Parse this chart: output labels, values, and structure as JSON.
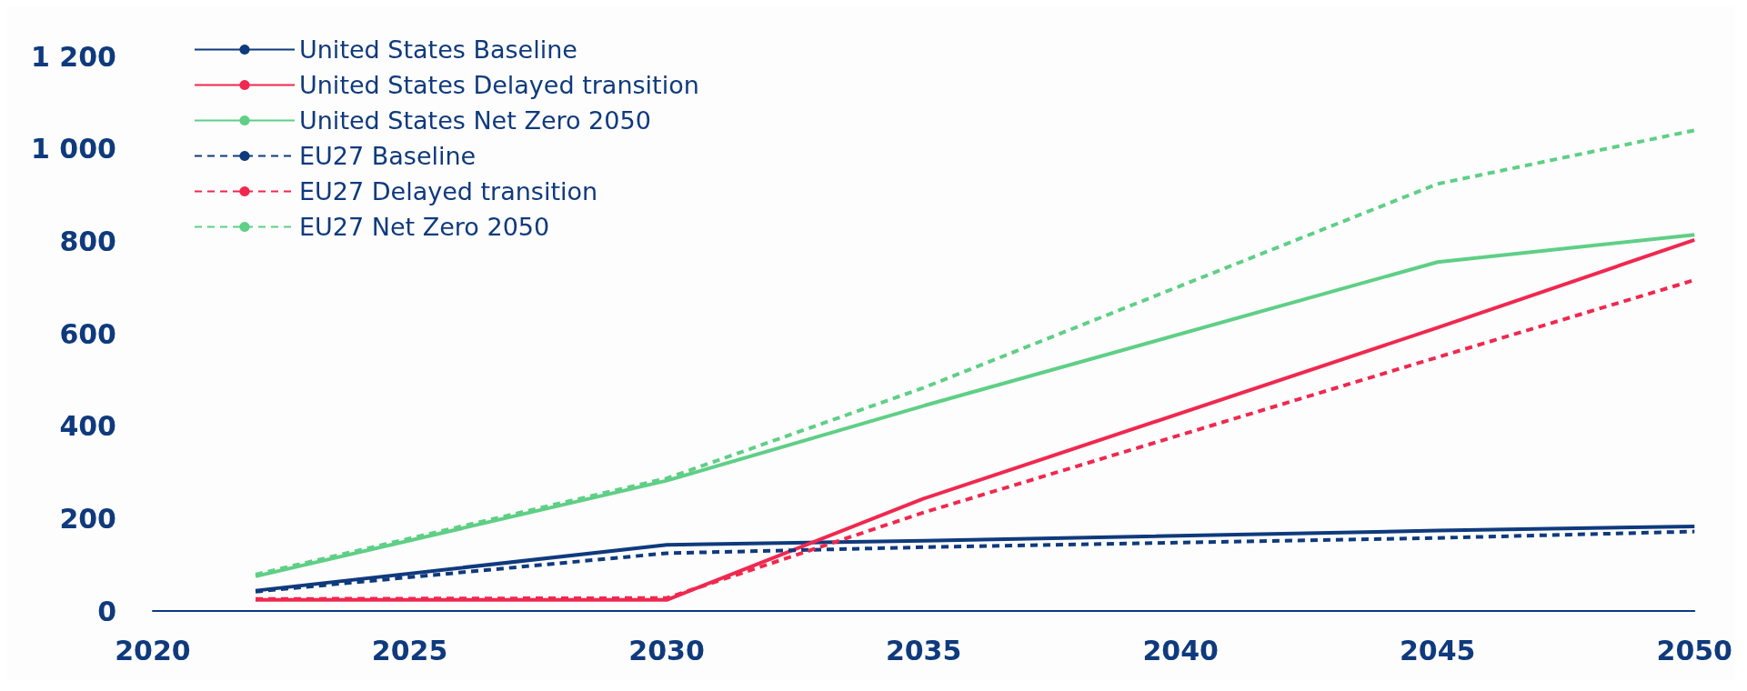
{
  "chart_data": {
    "type": "line",
    "x": [
      2022,
      2030,
      2035,
      2045,
      2050
    ],
    "series": [
      {
        "name": "United States Baseline",
        "color": "#0f3a7d",
        "line_style": "solid",
        "values": [
          44,
          143,
          152,
          174,
          183
        ]
      },
      {
        "name": "United States Delayed transition",
        "color": "#f0284f",
        "line_style": "solid",
        "values": [
          24,
          24,
          243,
          613,
          803
        ]
      },
      {
        "name": "United States Net Zero 2050",
        "color": "#5fcf86",
        "line_style": "solid",
        "values": [
          75,
          282,
          444,
          755,
          814
        ]
      },
      {
        "name": "EU27 Baseline",
        "color": "#0f3a7d",
        "line_style": "dashed",
        "values": [
          42,
          125,
          138,
          158,
          172
        ]
      },
      {
        "name": "EU27 Delayed transition",
        "color": "#f0284f",
        "line_style": "dashed",
        "values": [
          26,
          28,
          213,
          549,
          716
        ]
      },
      {
        "name": "EU27 Net Zero 2050",
        "color": "#5fcf86",
        "line_style": "dashed",
        "values": [
          79,
          287,
          483,
          924,
          1040
        ]
      }
    ],
    "xlim": [
      2020,
      2050
    ],
    "xticks": [
      2020,
      2025,
      2030,
      2035,
      2040,
      2045,
      2050
    ],
    "ylim": [
      0,
      1200
    ],
    "yticks": [
      0,
      200,
      400,
      600,
      800,
      {
        "value": 1000,
        "label": "1 000"
      },
      {
        "value": 1200,
        "label": "1 200"
      }
    ],
    "grid": false,
    "legend": "top left",
    "marker": "none"
  }
}
